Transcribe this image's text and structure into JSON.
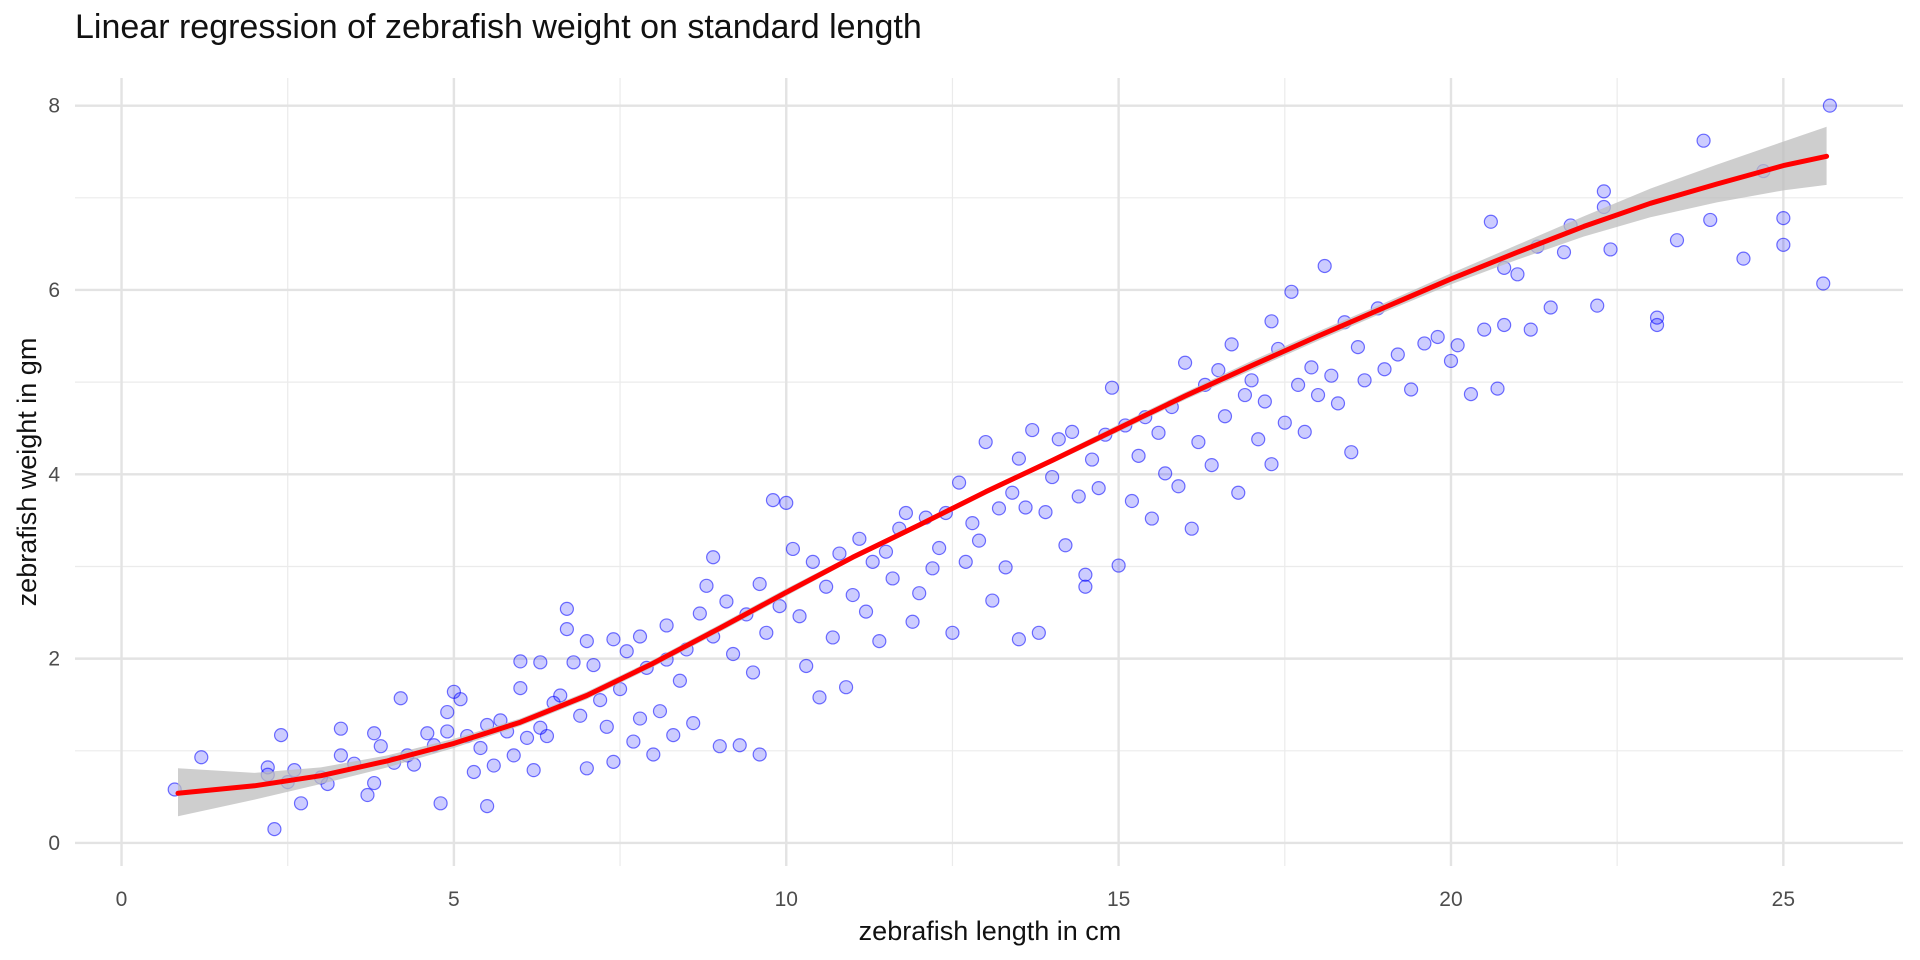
{
  "chart_data": {
    "type": "scatter",
    "title": "Linear regression of zebrafish weight on standard length",
    "xlabel": "zebrafish length in cm",
    "ylabel": "zebrafish weight in gm",
    "xlim": [
      -0.7,
      26.8
    ],
    "ylim": [
      -0.25,
      8.3
    ],
    "x_ticks": [
      0,
      5,
      10,
      15,
      20,
      25
    ],
    "y_ticks": [
      0,
      2,
      4,
      6,
      8
    ],
    "x_minor_gridlines": [
      2.5,
      7.5,
      12.5,
      17.5,
      22.5
    ],
    "y_minor_gridlines": [
      1,
      3,
      5,
      7
    ],
    "grid": true,
    "legend": "none",
    "point_color": "#0000ff",
    "point_opacity": 0.2,
    "fit_line_color": "#ff0000",
    "confidence_band_color": "#bebebe",
    "points_sampled": true,
    "points": [
      [
        0.8,
        0.58
      ],
      [
        1.2,
        0.93
      ],
      [
        2.2,
        0.74
      ],
      [
        2.2,
        0.82
      ],
      [
        2.3,
        0.15
      ],
      [
        2.4,
        1.17
      ],
      [
        2.5,
        0.66
      ],
      [
        2.6,
        0.79
      ],
      [
        2.7,
        0.43
      ],
      [
        3.0,
        0.71
      ],
      [
        3.1,
        0.64
      ],
      [
        3.3,
        1.24
      ],
      [
        3.3,
        0.95
      ],
      [
        3.5,
        0.86
      ],
      [
        3.7,
        0.52
      ],
      [
        3.8,
        0.65
      ],
      [
        3.8,
        1.19
      ],
      [
        3.9,
        1.05
      ],
      [
        4.1,
        0.87
      ],
      [
        4.2,
        1.57
      ],
      [
        4.3,
        0.95
      ],
      [
        4.4,
        0.85
      ],
      [
        4.6,
        1.19
      ],
      [
        4.7,
        1.06
      ],
      [
        4.8,
        0.43
      ],
      [
        4.9,
        1.21
      ],
      [
        4.9,
        1.42
      ],
      [
        5.0,
        1.64
      ],
      [
        5.1,
        1.56
      ],
      [
        5.2,
        1.16
      ],
      [
        5.3,
        0.77
      ],
      [
        5.4,
        1.03
      ],
      [
        5.5,
        1.28
      ],
      [
        5.5,
        0.4
      ],
      [
        5.6,
        0.84
      ],
      [
        5.7,
        1.33
      ],
      [
        5.8,
        1.21
      ],
      [
        5.9,
        0.95
      ],
      [
        6.0,
        1.97
      ],
      [
        6.0,
        1.68
      ],
      [
        6.1,
        1.14
      ],
      [
        6.2,
        0.79
      ],
      [
        6.3,
        1.96
      ],
      [
        6.3,
        1.25
      ],
      [
        6.4,
        1.16
      ],
      [
        6.5,
        1.52
      ],
      [
        6.6,
        1.6
      ],
      [
        6.7,
        2.32
      ],
      [
        6.7,
        2.54
      ],
      [
        6.8,
        1.96
      ],
      [
        6.9,
        1.38
      ],
      [
        7.0,
        2.19
      ],
      [
        7.0,
        0.81
      ],
      [
        7.1,
        1.93
      ],
      [
        7.2,
        1.55
      ],
      [
        7.3,
        1.26
      ],
      [
        7.4,
        2.21
      ],
      [
        7.4,
        0.88
      ],
      [
        7.5,
        1.67
      ],
      [
        7.6,
        2.08
      ],
      [
        7.7,
        1.1
      ],
      [
        7.8,
        2.24
      ],
      [
        7.8,
        1.35
      ],
      [
        7.9,
        1.9
      ],
      [
        8.0,
        0.96
      ],
      [
        8.1,
        1.43
      ],
      [
        8.2,
        1.99
      ],
      [
        8.2,
        2.36
      ],
      [
        8.3,
        1.17
      ],
      [
        8.4,
        1.76
      ],
      [
        8.5,
        2.1
      ],
      [
        8.6,
        1.3
      ],
      [
        8.7,
        2.49
      ],
      [
        8.8,
        2.79
      ],
      [
        8.9,
        3.1
      ],
      [
        8.9,
        2.24
      ],
      [
        9.0,
        1.05
      ],
      [
        9.1,
        2.62
      ],
      [
        9.2,
        2.05
      ],
      [
        9.3,
        1.06
      ],
      [
        9.4,
        2.48
      ],
      [
        9.5,
        1.85
      ],
      [
        9.6,
        2.81
      ],
      [
        9.6,
        0.96
      ],
      [
        9.7,
        2.28
      ],
      [
        9.8,
        3.72
      ],
      [
        9.9,
        2.57
      ],
      [
        10.0,
        3.69
      ],
      [
        10.1,
        3.19
      ],
      [
        10.2,
        2.46
      ],
      [
        10.3,
        1.92
      ],
      [
        10.4,
        3.05
      ],
      [
        10.5,
        1.58
      ],
      [
        10.6,
        2.78
      ],
      [
        10.7,
        2.23
      ],
      [
        10.8,
        3.14
      ],
      [
        10.9,
        1.69
      ],
      [
        11.0,
        2.69
      ],
      [
        11.1,
        3.3
      ],
      [
        11.2,
        2.51
      ],
      [
        11.3,
        3.05
      ],
      [
        11.4,
        2.19
      ],
      [
        11.5,
        3.16
      ],
      [
        11.6,
        2.87
      ],
      [
        11.7,
        3.41
      ],
      [
        11.8,
        3.58
      ],
      [
        11.9,
        2.4
      ],
      [
        12.0,
        2.71
      ],
      [
        12.1,
        3.53
      ],
      [
        12.2,
        2.98
      ],
      [
        12.3,
        3.2
      ],
      [
        12.4,
        3.58
      ],
      [
        12.5,
        2.28
      ],
      [
        12.6,
        3.91
      ],
      [
        12.7,
        3.05
      ],
      [
        12.8,
        3.47
      ],
      [
        12.9,
        3.28
      ],
      [
        13.0,
        4.35
      ],
      [
        13.1,
        2.63
      ],
      [
        13.2,
        3.63
      ],
      [
        13.3,
        2.99
      ],
      [
        13.4,
        3.8
      ],
      [
        13.5,
        2.21
      ],
      [
        13.5,
        4.17
      ],
      [
        13.6,
        3.64
      ],
      [
        13.7,
        4.48
      ],
      [
        13.8,
        2.28
      ],
      [
        13.9,
        3.59
      ],
      [
        14.0,
        3.97
      ],
      [
        14.1,
        4.38
      ],
      [
        14.2,
        3.23
      ],
      [
        14.3,
        4.46
      ],
      [
        14.4,
        3.76
      ],
      [
        14.5,
        2.78
      ],
      [
        14.5,
        2.91
      ],
      [
        14.6,
        4.16
      ],
      [
        14.7,
        3.85
      ],
      [
        14.8,
        4.43
      ],
      [
        14.9,
        4.94
      ],
      [
        15.0,
        3.01
      ],
      [
        15.1,
        4.53
      ],
      [
        15.2,
        3.71
      ],
      [
        15.3,
        4.2
      ],
      [
        15.4,
        4.62
      ],
      [
        15.5,
        3.52
      ],
      [
        15.6,
        4.45
      ],
      [
        15.7,
        4.01
      ],
      [
        15.8,
        4.73
      ],
      [
        15.9,
        3.87
      ],
      [
        16.0,
        5.21
      ],
      [
        16.1,
        3.41
      ],
      [
        16.2,
        4.35
      ],
      [
        16.3,
        4.97
      ],
      [
        16.4,
        4.1
      ],
      [
        16.5,
        5.13
      ],
      [
        16.6,
        4.63
      ],
      [
        16.7,
        5.41
      ],
      [
        16.8,
        3.8
      ],
      [
        16.9,
        4.86
      ],
      [
        17.0,
        5.02
      ],
      [
        17.1,
        4.38
      ],
      [
        17.2,
        4.79
      ],
      [
        17.3,
        4.11
      ],
      [
        17.3,
        5.66
      ],
      [
        17.4,
        5.36
      ],
      [
        17.5,
        4.56
      ],
      [
        17.6,
        5.98
      ],
      [
        17.7,
        4.97
      ],
      [
        17.8,
        4.46
      ],
      [
        17.9,
        5.16
      ],
      [
        18.0,
        4.86
      ],
      [
        18.1,
        6.26
      ],
      [
        18.2,
        5.07
      ],
      [
        18.3,
        4.77
      ],
      [
        18.4,
        5.65
      ],
      [
        18.5,
        4.24
      ],
      [
        18.6,
        5.38
      ],
      [
        18.7,
        5.02
      ],
      [
        18.9,
        5.8
      ],
      [
        19.0,
        5.14
      ],
      [
        19.2,
        5.3
      ],
      [
        19.4,
        4.92
      ],
      [
        19.6,
        5.42
      ],
      [
        19.8,
        5.49
      ],
      [
        20.0,
        5.23
      ],
      [
        20.1,
        5.4
      ],
      [
        20.3,
        4.87
      ],
      [
        20.5,
        5.57
      ],
      [
        20.6,
        6.74
      ],
      [
        20.7,
        4.93
      ],
      [
        20.8,
        6.24
      ],
      [
        20.8,
        5.62
      ],
      [
        21.0,
        6.17
      ],
      [
        21.2,
        5.57
      ],
      [
        21.3,
        6.47
      ],
      [
        21.5,
        5.81
      ],
      [
        21.7,
        6.41
      ],
      [
        21.8,
        6.7
      ],
      [
        22.2,
        5.83
      ],
      [
        22.3,
        7.07
      ],
      [
        22.3,
        6.9
      ],
      [
        22.4,
        6.44
      ],
      [
        23.1,
        5.7
      ],
      [
        23.1,
        5.62
      ],
      [
        23.4,
        6.54
      ],
      [
        23.8,
        7.62
      ],
      [
        23.9,
        6.76
      ],
      [
        24.4,
        6.34
      ],
      [
        24.7,
        7.29
      ],
      [
        25.0,
        6.78
      ],
      [
        25.0,
        6.49
      ],
      [
        25.6,
        6.07
      ],
      [
        25.7,
        8.0
      ]
    ],
    "fit_curve": [
      [
        0.85,
        0.54
      ],
      [
        2.0,
        0.62
      ],
      [
        3.0,
        0.73
      ],
      [
        4.0,
        0.89
      ],
      [
        5.0,
        1.08
      ],
      [
        6.0,
        1.31
      ],
      [
        7.0,
        1.6
      ],
      [
        8.0,
        1.95
      ],
      [
        9.0,
        2.33
      ],
      [
        10.0,
        2.72
      ],
      [
        11.0,
        3.1
      ],
      [
        12.0,
        3.45
      ],
      [
        13.0,
        3.81
      ],
      [
        14.0,
        4.15
      ],
      [
        15.0,
        4.5
      ],
      [
        16.0,
        4.85
      ],
      [
        17.0,
        5.18
      ],
      [
        18.0,
        5.5
      ],
      [
        19.0,
        5.81
      ],
      [
        20.0,
        6.12
      ],
      [
        21.0,
        6.41
      ],
      [
        22.0,
        6.69
      ],
      [
        23.0,
        6.94
      ],
      [
        24.0,
        7.15
      ],
      [
        25.0,
        7.35
      ],
      [
        25.65,
        7.45
      ]
    ],
    "band_lower": [
      [
        0.85,
        0.29
      ],
      [
        2.0,
        0.47
      ],
      [
        3.0,
        0.64
      ],
      [
        4.0,
        0.82
      ],
      [
        5.0,
        1.03
      ],
      [
        6.0,
        1.27
      ],
      [
        7.0,
        1.56
      ],
      [
        8.0,
        1.91
      ],
      [
        9.0,
        2.29
      ],
      [
        10.0,
        2.68
      ],
      [
        11.0,
        3.07
      ],
      [
        12.0,
        3.42
      ],
      [
        13.0,
        3.78
      ],
      [
        14.0,
        4.12
      ],
      [
        15.0,
        4.46
      ],
      [
        16.0,
        4.81
      ],
      [
        17.0,
        5.13
      ],
      [
        18.0,
        5.45
      ],
      [
        19.0,
        5.76
      ],
      [
        20.0,
        6.06
      ],
      [
        21.0,
        6.33
      ],
      [
        22.0,
        6.58
      ],
      [
        23.0,
        6.79
      ],
      [
        24.0,
        6.95
      ],
      [
        25.0,
        7.08
      ],
      [
        25.65,
        7.14
      ]
    ],
    "band_upper": [
      [
        0.85,
        0.81
      ],
      [
        2.0,
        0.76
      ],
      [
        3.0,
        0.82
      ],
      [
        4.0,
        0.95
      ],
      [
        5.0,
        1.13
      ],
      [
        6.0,
        1.35
      ],
      [
        7.0,
        1.64
      ],
      [
        8.0,
        1.99
      ],
      [
        9.0,
        2.37
      ],
      [
        10.0,
        2.76
      ],
      [
        11.0,
        3.13
      ],
      [
        12.0,
        3.48
      ],
      [
        13.0,
        3.84
      ],
      [
        14.0,
        4.18
      ],
      [
        15.0,
        4.54
      ],
      [
        16.0,
        4.89
      ],
      [
        17.0,
        5.23
      ],
      [
        18.0,
        5.55
      ],
      [
        19.0,
        5.86
      ],
      [
        20.0,
        6.18
      ],
      [
        21.0,
        6.49
      ],
      [
        22.0,
        6.8
      ],
      [
        23.0,
        7.1
      ],
      [
        24.0,
        7.36
      ],
      [
        25.0,
        7.61
      ],
      [
        25.65,
        7.77
      ]
    ]
  }
}
